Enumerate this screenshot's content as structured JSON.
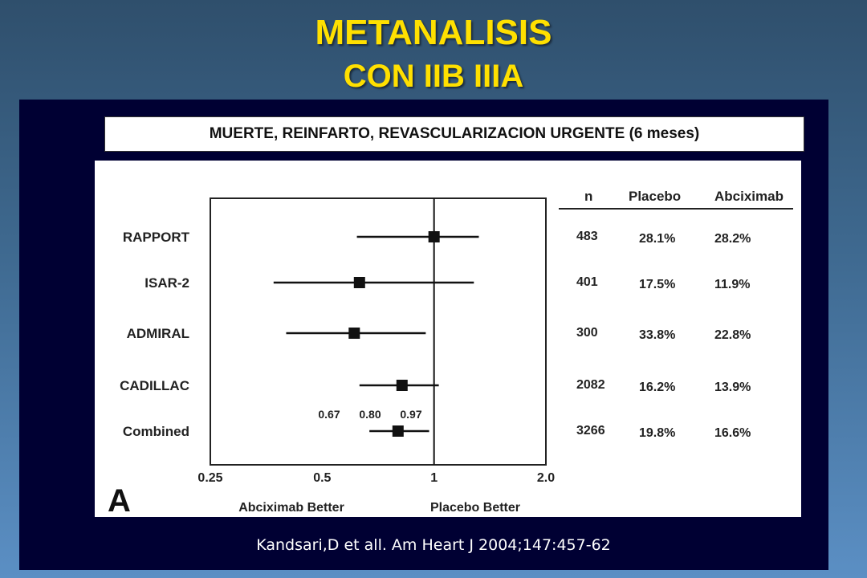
{
  "slide": {
    "title_line1": "METANALISIS",
    "title_line2": "CON IIB IIIA",
    "subtitle": "MUERTE, REINFARTO, REVASCULARIZACION URGENTE (6 meses)",
    "citation": "Kandsari,D et all. Am Heart J 2004;147:457-62",
    "panel_label": "A"
  },
  "chart_data": {
    "type": "forest",
    "x_scale": "log",
    "xlim": [
      0.25,
      2.0
    ],
    "x_ticks": [
      {
        "value": 0.25,
        "label": "0.25"
      },
      {
        "value": 0.5,
        "label": "0.5"
      },
      {
        "value": 1,
        "label": "1"
      },
      {
        "value": 2.0,
        "label": "2.0"
      }
    ],
    "x_left_label": "Abciximab Better",
    "x_right_label": "Placebo Better",
    "reference_line": 1,
    "columns": [
      "n",
      "Placebo",
      "Abciximab"
    ],
    "studies": [
      {
        "name": "RAPPORT",
        "or": 1.0,
        "lo": 0.62,
        "hi": 1.32,
        "n": "483",
        "placebo": "28.1%",
        "abciximab": "28.2%"
      },
      {
        "name": "ISAR-2",
        "or": 0.63,
        "lo": 0.37,
        "hi": 1.28,
        "n": "401",
        "placebo": "17.5%",
        "abciximab": "11.9%"
      },
      {
        "name": "ADMIRAL",
        "or": 0.61,
        "lo": 0.4,
        "hi": 0.95,
        "n": "300",
        "placebo": "33.8%",
        "abciximab": "22.8%"
      },
      {
        "name": "CADILLAC",
        "or": 0.82,
        "lo": 0.63,
        "hi": 1.03,
        "n": "2082",
        "placebo": "16.2%",
        "abciximab": "13.9%"
      },
      {
        "name": "Combined",
        "or": 0.8,
        "lo": 0.67,
        "hi": 0.97,
        "n": "3266",
        "placebo": "19.8%",
        "abciximab": "16.6%"
      }
    ],
    "combined_ci_labels": [
      "0.67",
      "0.80",
      "0.97"
    ]
  }
}
